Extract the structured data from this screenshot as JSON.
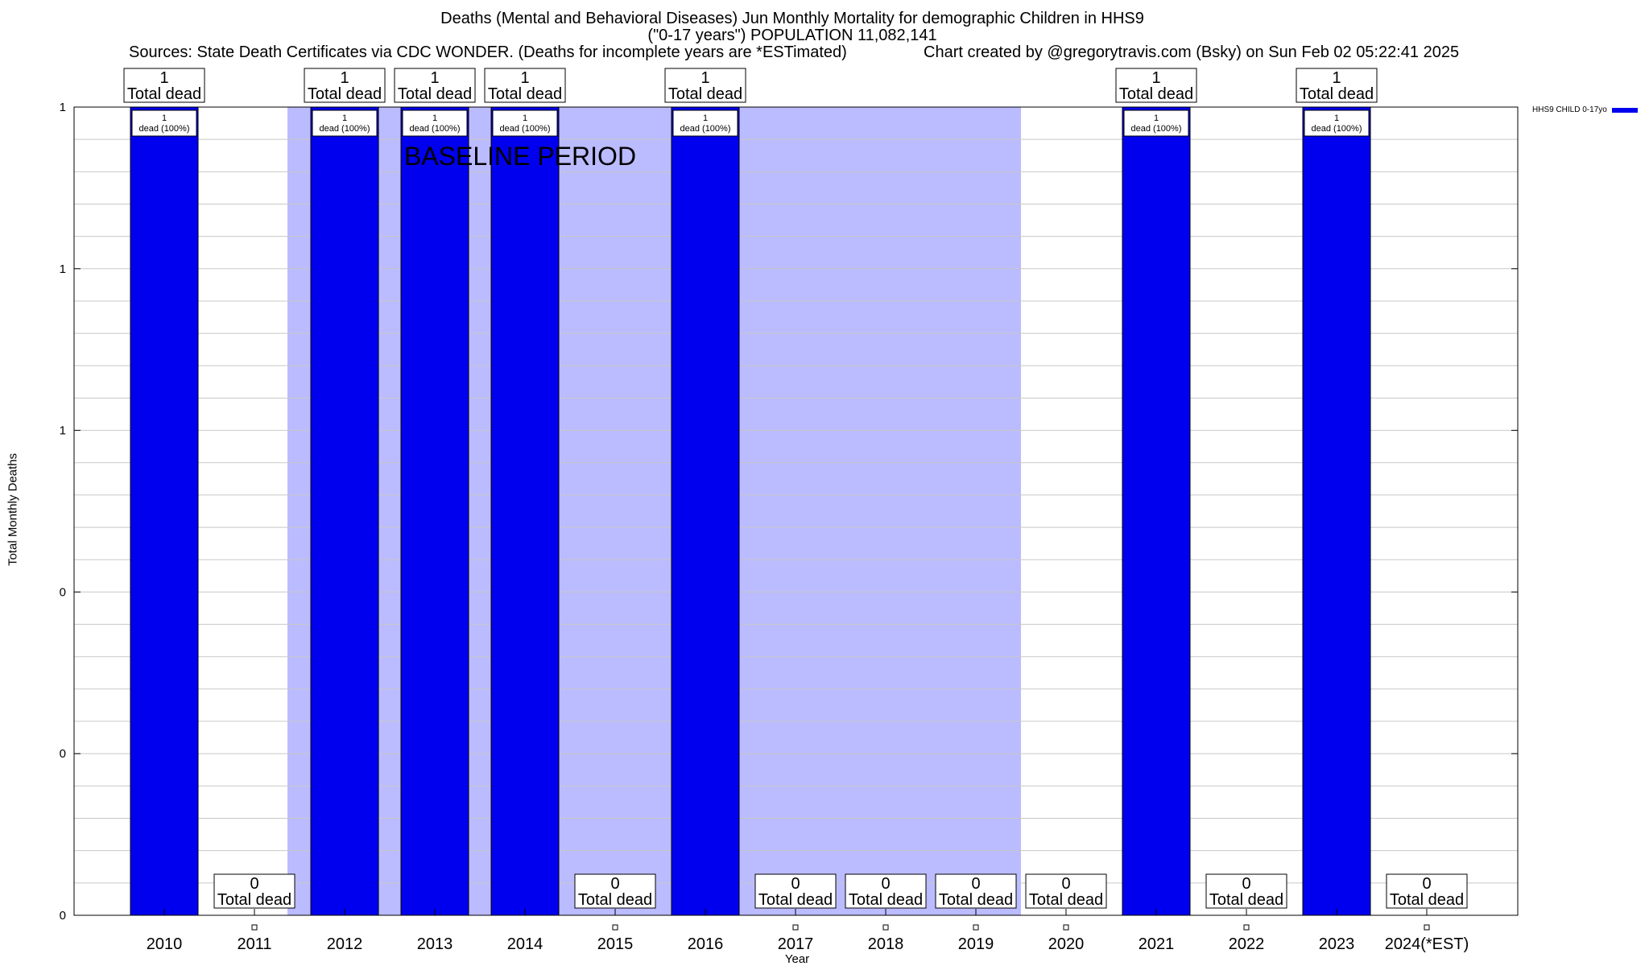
{
  "header": {
    "title_line1": "Deaths (Mental and Behavioral Diseases) Jun Monthly Mortality for demographic Children in HHS9",
    "title_line2": "(\"0-17 years\") POPULATION 11,082,141",
    "sources": "Sources: State Death Certificates via CDC WONDER. (Deaths for incomplete years are *ESTimated)",
    "credit": "Chart created by @gregorytravis.com (Bsky) on Sun Feb 02 05:22:41 2025"
  },
  "colors": {
    "bar": "#0000ee",
    "baseline_band": "#bbbbff",
    "grid": "#c8c8c8"
  },
  "chart_data": {
    "type": "bar",
    "xlabel": "Year",
    "ylabel": "Total Monthly Deaths",
    "ylim": [
      0,
      1
    ],
    "y_tick_labels": [
      "0",
      "0",
      "0",
      "1",
      "1",
      "1"
    ],
    "categories": [
      "2010",
      "2011",
      "2012",
      "2013",
      "2014",
      "2015",
      "2016",
      "2017",
      "2018",
      "2019",
      "2020",
      "2021",
      "2022",
      "2023",
      "2024(*EST)"
    ],
    "series": [
      {
        "name": "HHS9 CHILD 0-17yo",
        "values": [
          1,
          0,
          1,
          1,
          1,
          0,
          1,
          0,
          0,
          0,
          0,
          1,
          0,
          1,
          0
        ]
      }
    ],
    "total_labels": [
      "1",
      "0",
      "1",
      "1",
      "1",
      "0",
      "1",
      "0",
      "0",
      "0",
      "0",
      "1",
      "0",
      "1",
      "0"
    ],
    "total_suffix": "Total dead",
    "bar_labels": [
      "1\ndead (100%)",
      "",
      "1\ndead (100%)",
      "1\ndead (100%)",
      "1\ndead (100%)",
      "",
      "1\ndead (100%)",
      "",
      "",
      "",
      "",
      "1\ndead (100%)",
      "",
      "1\ndead (100%)",
      ""
    ],
    "annotation": "BASELINE PERIOD",
    "baseline_period": [
      "2012",
      "2019"
    ],
    "legend_position": "top-right",
    "grid": true
  }
}
